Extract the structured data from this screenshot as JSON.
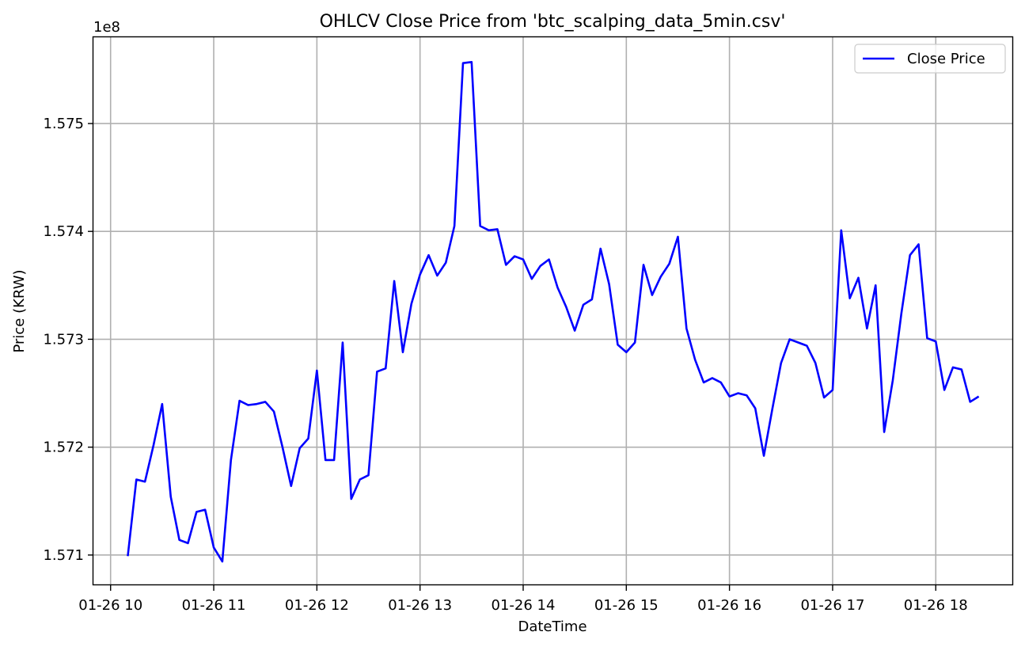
{
  "chart_data": {
    "type": "line",
    "title": "OHLCV Close Price from 'btc_scalping_data_5min.csv'",
    "xlabel": "DateTime",
    "ylabel": "Price (KRW)",
    "y_offset_label": "1e8",
    "grid": true,
    "legend_position": "top-right",
    "x_tick_labels": [
      "01-26 10",
      "01-26 11",
      "01-26 12",
      "01-26 13",
      "01-26 14",
      "01-26 15",
      "01-26 16",
      "01-26 17",
      "01-26 18"
    ],
    "y_tick_labels": [
      "1.571",
      "1.572",
      "1.573",
      "1.574",
      "1.575"
    ],
    "y_tick_values": [
      157100000,
      157200000,
      157300000,
      157400000,
      157500000
    ],
    "xlim": [
      "2025-01-26 09:50",
      "2025-01-26 18:45"
    ],
    "ylim": [
      157072000,
      157580000
    ],
    "series": [
      {
        "name": "Close Price",
        "color": "#0000ff",
        "x": [
          "2025-01-26 10:10",
          "2025-01-26 10:15",
          "2025-01-26 10:20",
          "2025-01-26 10:25",
          "2025-01-26 10:30",
          "2025-01-26 10:35",
          "2025-01-26 10:40",
          "2025-01-26 10:45",
          "2025-01-26 10:50",
          "2025-01-26 10:55",
          "2025-01-26 11:00",
          "2025-01-26 11:05",
          "2025-01-26 11:10",
          "2025-01-26 11:15",
          "2025-01-26 11:20",
          "2025-01-26 11:25",
          "2025-01-26 11:30",
          "2025-01-26 11:35",
          "2025-01-26 11:40",
          "2025-01-26 11:45",
          "2025-01-26 11:50",
          "2025-01-26 11:55",
          "2025-01-26 12:00",
          "2025-01-26 12:05",
          "2025-01-26 12:10",
          "2025-01-26 12:15",
          "2025-01-26 12:20",
          "2025-01-26 12:25",
          "2025-01-26 12:30",
          "2025-01-26 12:35",
          "2025-01-26 12:40",
          "2025-01-26 12:45",
          "2025-01-26 12:50",
          "2025-01-26 12:55",
          "2025-01-26 13:00",
          "2025-01-26 13:05",
          "2025-01-26 13:10",
          "2025-01-26 13:15",
          "2025-01-26 13:20",
          "2025-01-26 13:25",
          "2025-01-26 13:30",
          "2025-01-26 13:35",
          "2025-01-26 13:40",
          "2025-01-26 13:45",
          "2025-01-26 13:50",
          "2025-01-26 13:55",
          "2025-01-26 14:00",
          "2025-01-26 14:05",
          "2025-01-26 14:10",
          "2025-01-26 14:15",
          "2025-01-26 14:20",
          "2025-01-26 14:25",
          "2025-01-26 14:30",
          "2025-01-26 14:35",
          "2025-01-26 14:40",
          "2025-01-26 14:45",
          "2025-01-26 14:50",
          "2025-01-26 14:55",
          "2025-01-26 15:00",
          "2025-01-26 15:05",
          "2025-01-26 15:10",
          "2025-01-26 15:15",
          "2025-01-26 15:20",
          "2025-01-26 15:25",
          "2025-01-26 15:30",
          "2025-01-26 15:35",
          "2025-01-26 15:40",
          "2025-01-26 15:45",
          "2025-01-26 15:50",
          "2025-01-26 15:55",
          "2025-01-26 16:00",
          "2025-01-26 16:05",
          "2025-01-26 16:10",
          "2025-01-26 16:15",
          "2025-01-26 16:20",
          "2025-01-26 16:25",
          "2025-01-26 16:30",
          "2025-01-26 16:35",
          "2025-01-26 16:40",
          "2025-01-26 16:45",
          "2025-01-26 16:50",
          "2025-01-26 16:55",
          "2025-01-26 17:00",
          "2025-01-26 17:05",
          "2025-01-26 17:10",
          "2025-01-26 17:15",
          "2025-01-26 17:20",
          "2025-01-26 17:25",
          "2025-01-26 17:30",
          "2025-01-26 17:35",
          "2025-01-26 17:40",
          "2025-01-26 17:45",
          "2025-01-26 17:50",
          "2025-01-26 17:55",
          "2025-01-26 18:00",
          "2025-01-26 18:05",
          "2025-01-26 18:10",
          "2025-01-26 18:15",
          "2025-01-26 18:20",
          "2025-01-26 18:25"
        ],
        "values": [
          157099000,
          157170000,
          157168000,
          157202000,
          157240000,
          157154000,
          157114000,
          157111000,
          157140000,
          157142000,
          157107000,
          157094000,
          157188000,
          157243000,
          157239000,
          157240000,
          157242000,
          157233000,
          157200000,
          157164000,
          157199000,
          157208000,
          157271000,
          157188000,
          157188000,
          157297000,
          157152000,
          157170000,
          157174000,
          157270000,
          157273000,
          157354000,
          157288000,
          157333000,
          157360000,
          157378000,
          157359000,
          157371000,
          157405000,
          157556000,
          157557000,
          157405000,
          157401000,
          157402000,
          157369000,
          157377000,
          157374000,
          157356000,
          157368000,
          157374000,
          157348000,
          157330000,
          157308000,
          157332000,
          157337000,
          157384000,
          157351000,
          157295000,
          157288000,
          157297000,
          157369000,
          157341000,
          157358000,
          157370000,
          157395000,
          157310000,
          157281000,
          157260000,
          157264000,
          157260000,
          157247000,
          157250000,
          157248000,
          157236000,
          157192000,
          157236000,
          157278000,
          157300000,
          157297000,
          157294000,
          157278000,
          157246000,
          157253000,
          157401000,
          157338000,
          157357000,
          157310000,
          157350000,
          157214000,
          157262000,
          157324000,
          157378000,
          157388000,
          157301000,
          157298000,
          157253000,
          157274000,
          157272000,
          157242000,
          157247000
        ]
      }
    ]
  }
}
